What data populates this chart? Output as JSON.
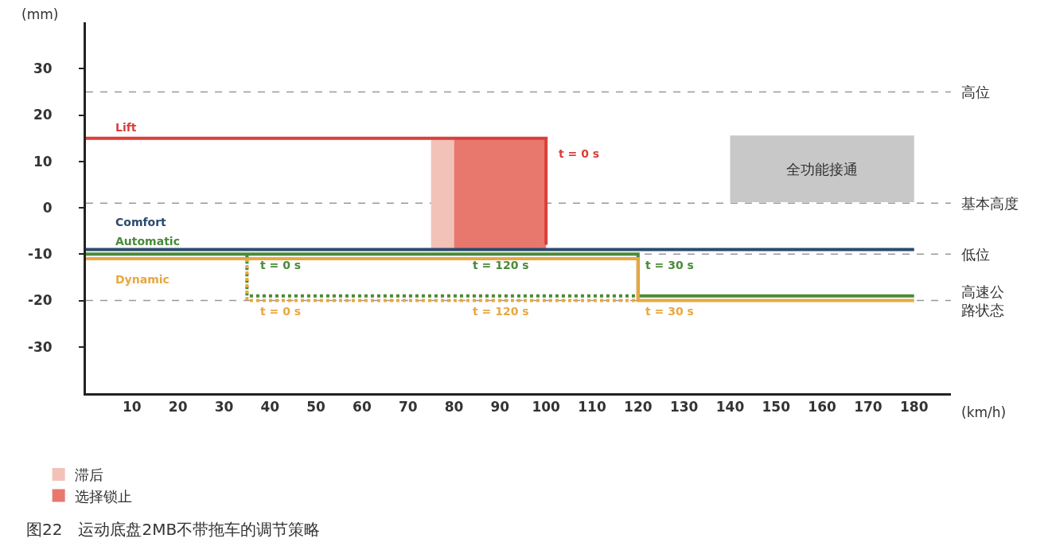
{
  "chart_data": {
    "type": "line",
    "title": "图22　运动底盘2MB不带拖车的调节策略",
    "xlabel": "(km/h)",
    "ylabel": "(mm)",
    "xlim": [
      0,
      188
    ],
    "xticks": [
      10,
      20,
      30,
      40,
      50,
      60,
      70,
      80,
      90,
      100,
      110,
      120,
      130,
      140,
      150,
      160,
      170,
      180
    ],
    "ylim": [
      -40,
      40
    ],
    "yticks": [
      -30,
      -20,
      -10,
      0,
      10,
      20,
      30
    ],
    "grid": false,
    "legend": "bottom left",
    "marker": "none",
    "line_style": "solid",
    "series": [
      {
        "name": "Lift",
        "color": "#d9403a",
        "x": [
          0,
          100,
          100
        ],
        "values": [
          15,
          15,
          -8
        ]
      },
      {
        "name": "Comfort",
        "color": "#2c4a6e",
        "x": [
          0,
          180
        ],
        "values": [
          -9,
          -9
        ]
      },
      {
        "name": "Automatic",
        "color": "#4a8a3a",
        "x": [
          0,
          120,
          120,
          180
        ],
        "values": [
          -10,
          -10,
          -19,
          -19
        ]
      },
      {
        "name": "Dynamic",
        "color": "#e8a840",
        "x": [
          0,
          120,
          120,
          180
        ],
        "values": [
          -11,
          -11,
          -20,
          -20
        ]
      },
      {
        "color": "#4a8a3a",
        "line_style": "dotted",
        "x": [
          35,
          35,
          120
        ],
        "values": [
          -10,
          -19,
          -19
        ]
      },
      {
        "color": "#e8a840",
        "line_style": "dotted",
        "x": [
          35,
          35,
          120
        ],
        "values": [
          -11,
          -20,
          -20
        ]
      }
    ],
    "bands": [
      {
        "axis": "x",
        "from": 75,
        "to": 80,
        "label": "滞后",
        "color": "#f2c2b8"
      },
      {
        "axis": "x",
        "from": 80,
        "to": 100,
        "label": "选择锁止",
        "color": "#e8786e"
      },
      {
        "axis": "x",
        "from": 140,
        "to": 180,
        "label": "全功能接通",
        "color": "#c8c8c8"
      }
    ],
    "ref_lines": [
      {
        "axis": "y",
        "value": 25,
        "label": "高位",
        "color": "#999999",
        "line_style": "dashed"
      },
      {
        "axis": "y",
        "value": 1,
        "label": "基本高度",
        "color": "#999999",
        "line_style": "dashed"
      },
      {
        "axis": "y",
        "value": -10,
        "label": "低位",
        "color": "#999999",
        "line_style": "dashed"
      },
      {
        "axis": "y",
        "value": -20,
        "label": "高速公路状态",
        "color": "#999999",
        "line_style": "dashed"
      }
    ],
    "annotations": [
      "t = 0 s",
      "t = 0 s",
      "t = 0 s",
      "t = 120 s",
      "t = 120 s",
      "t = 30 s",
      "t = 30 s"
    ]
  }
}
